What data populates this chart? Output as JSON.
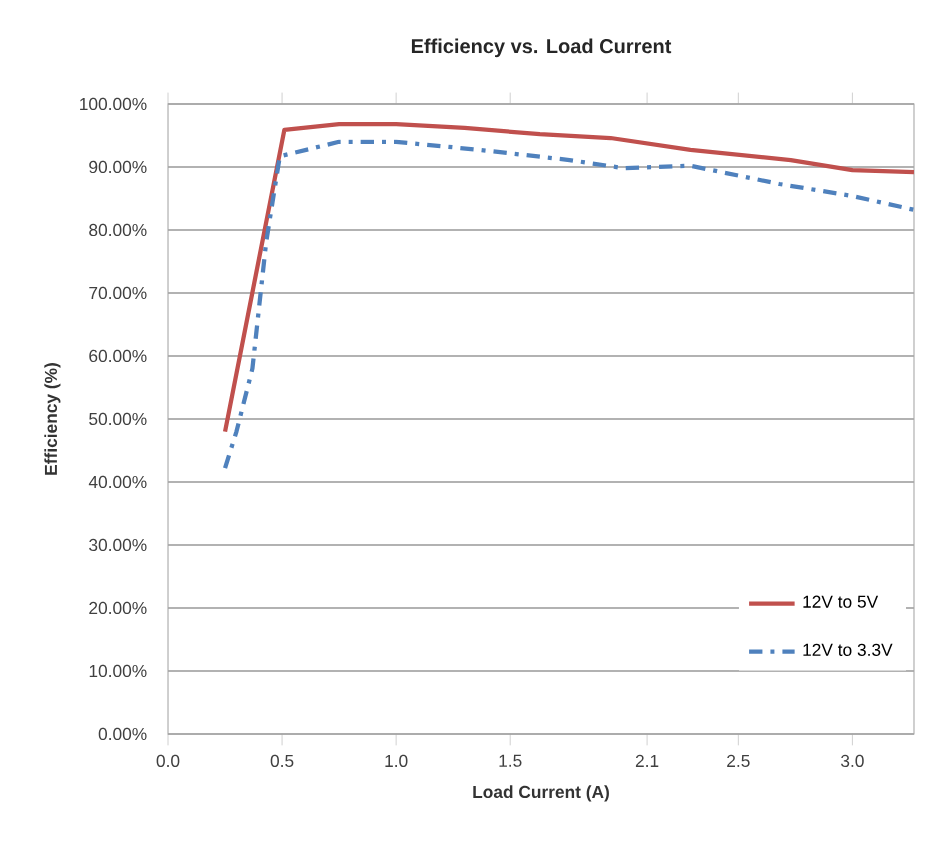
{
  "chart_data": {
    "type": "line",
    "title": "Efficiency vs. Load Current",
    "xlabel": "Load Current (A)",
    "ylabel": "Efficiency (%)",
    "xlim": [
      0,
      3.27
    ],
    "xticks": [
      {
        "value": 0,
        "label": "0.0"
      },
      {
        "value": 0.5,
        "label": "0.5"
      },
      {
        "value": 1,
        "label": "1.0"
      },
      {
        "value": 1.5,
        "label": "1.5"
      },
      {
        "value": 2.1,
        "label": "2.1"
      },
      {
        "value": 2.5,
        "label": "2.5"
      },
      {
        "value": 3,
        "label": "3.0"
      }
    ],
    "ylim": [
      0,
      100
    ],
    "yticks": [
      {
        "value": 0,
        "label": "0.00%"
      },
      {
        "value": 10,
        "label": "10.00%"
      },
      {
        "value": 20,
        "label": "20.00%"
      },
      {
        "value": 30,
        "label": "30.00%"
      },
      {
        "value": 40,
        "label": "40.00%"
      },
      {
        "value": 50,
        "label": "50.00%"
      },
      {
        "value": 60,
        "label": "60.00%"
      },
      {
        "value": 70,
        "label": "70.00%"
      },
      {
        "value": 80,
        "label": "80.00%"
      },
      {
        "value": 90,
        "label": "90.00%"
      },
      {
        "value": 100,
        "label": "100.00%"
      }
    ],
    "grid": "y",
    "legend": "bottom right",
    "marker": "none",
    "series": [
      {
        "name": "12V to 5V",
        "color": "#c0504d",
        "line_style": "solid",
        "x": [
          0.25,
          0.51,
          0.75,
          1.0,
          1.3,
          1.63,
          1.94,
          2.29,
          2.73,
          3.0,
          3.27
        ],
        "values": [
          48,
          95.9,
          96.8,
          96.8,
          96.2,
          95.2,
          94.6,
          92.7,
          91.1,
          89.5,
          89.2
        ]
      },
      {
        "name": "12V to 3.3V",
        "color": "#4f81bd",
        "line_style": "dashdot",
        "x": [
          0.25,
          0.3,
          0.37,
          0.43,
          0.49,
          0.75,
          1.0,
          1.37,
          1.76,
          2.0,
          2.29,
          2.68,
          3.0,
          3.27
        ],
        "values": [
          42.2,
          48,
          58,
          78,
          91.7,
          94,
          94,
          92.7,
          91.1,
          89.8,
          90.2,
          87.3,
          85.4,
          83.2
        ]
      }
    ]
  }
}
